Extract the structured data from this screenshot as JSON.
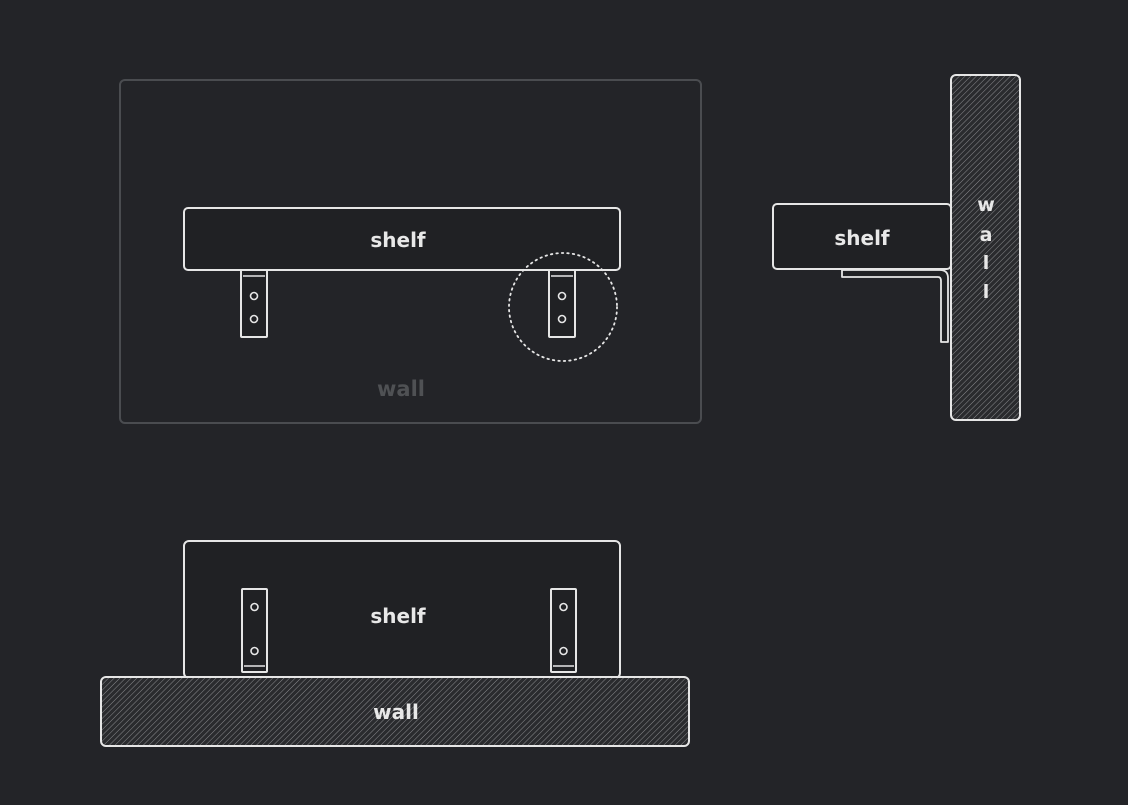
{
  "front_view": {
    "shelf_label": "shelf",
    "wall_label": "wall"
  },
  "side_view": {
    "shelf_label": "shelf",
    "wall_label": "wall",
    "wall_letters": [
      "w",
      "a",
      "l",
      "l"
    ]
  },
  "top_view": {
    "shelf_label": "shelf",
    "wall_label": "wall"
  },
  "colors": {
    "background": "#232428",
    "stroke": "#e6e6e6",
    "frame": "#4a4c50",
    "fill": "#202124"
  }
}
